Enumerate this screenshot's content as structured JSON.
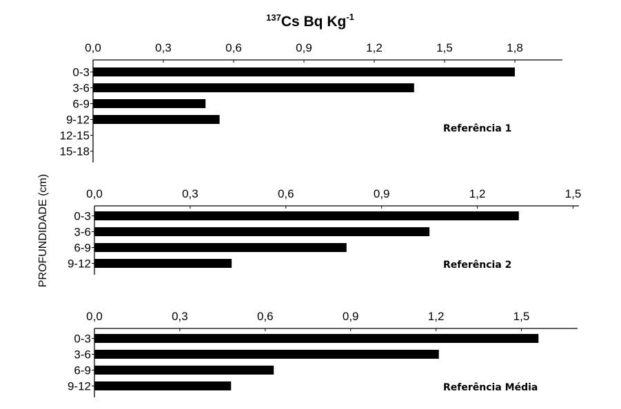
{
  "chart_data": {
    "type": "bar",
    "orientation": "horizontal",
    "title": {
      "sup": "137",
      "main": "Cs Bq Kg",
      "exp": "-1"
    },
    "ylabel": "PROFUNDIDADE (cm)",
    "bar_color": "#000000",
    "panels": [
      {
        "label": "Referência 1",
        "categories": [
          "0-3",
          "3-6",
          "6-9",
          "9-12",
          "12-15",
          "15-18"
        ],
        "values": [
          1.8,
          1.37,
          0.48,
          0.54,
          0,
          0
        ],
        "xlim": [
          0,
          2.0
        ],
        "ticks": [
          "0,0",
          "0,3",
          "0,6",
          "0,9",
          "1,2",
          "1,5",
          "1,8"
        ]
      },
      {
        "label": "Referência 2",
        "categories": [
          "0-3",
          "3-6",
          "6-9",
          "9-12"
        ],
        "values": [
          1.33,
          1.05,
          0.79,
          0.43
        ],
        "xlim": [
          0,
          1.5
        ],
        "ticks": [
          "0,0",
          "0,3",
          "0,6",
          "0,9",
          "1,2",
          "1,5"
        ]
      },
      {
        "label": "Referência Média",
        "categories": [
          "0-3",
          "3-6",
          "6-9",
          "9-12"
        ],
        "values": [
          1.56,
          1.21,
          0.63,
          0.48
        ],
        "xlim": [
          0,
          1.7
        ],
        "ticks": [
          "0,0",
          "0,3",
          "0,6",
          "0,9",
          "1,2",
          "1,5"
        ]
      }
    ]
  }
}
